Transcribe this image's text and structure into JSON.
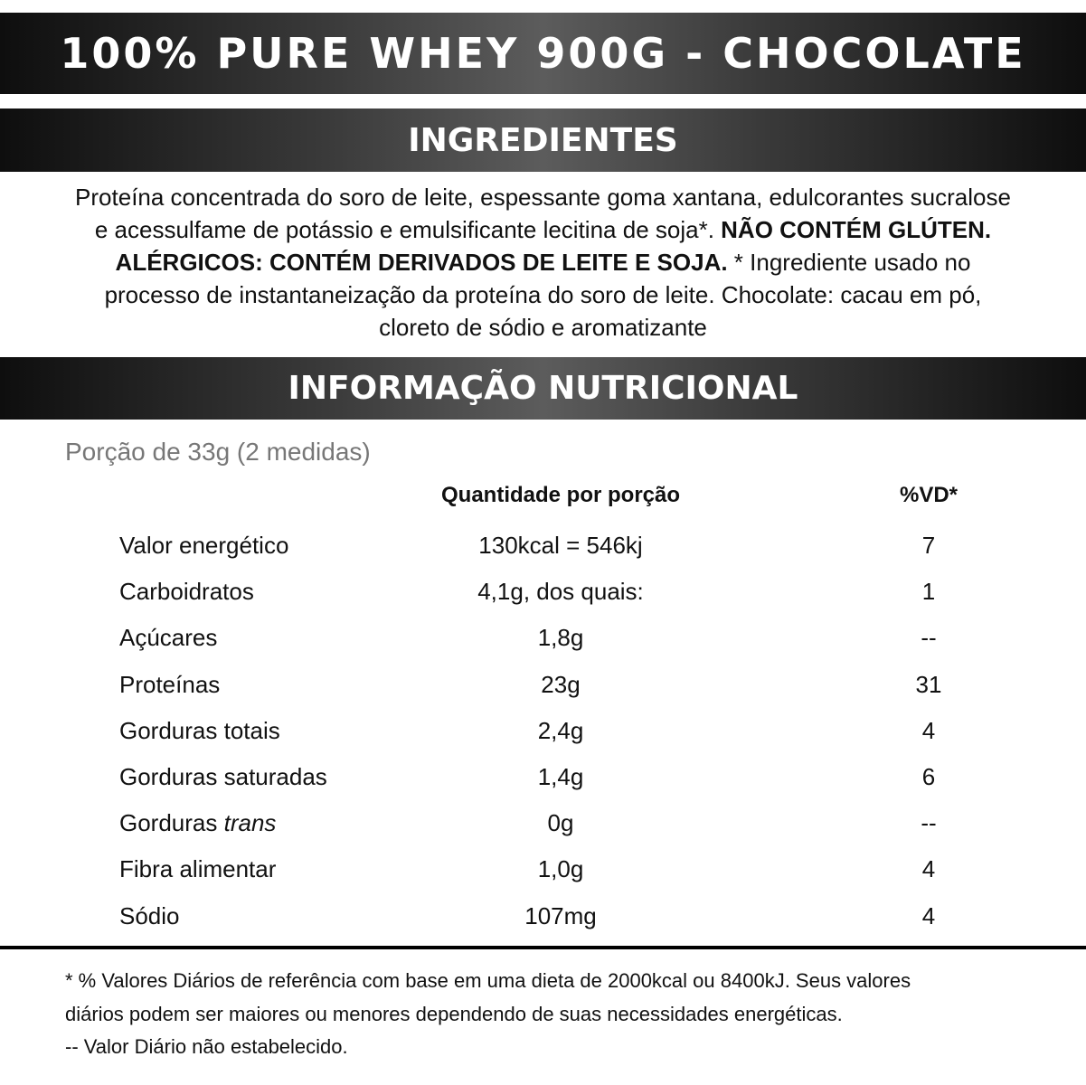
{
  "header": {
    "title": "100% PURE WHEY 900G - CHOCOLATE"
  },
  "ingredients": {
    "heading": "INGREDIENTES",
    "parts": [
      "Proteína concentrada do soro de leite, espessante goma xantana, edulcorantes sucralose e acessulfame de potássio e emulsificante lecitina de soja*. ",
      "NÃO CONTÉM GLÚTEN. ALÉRGICOS: CONTÉM DERIVADOS DE LEITE E SOJA.",
      " * Ingrediente usado no processo de instantaneização da proteína do soro de leite. Chocolate: cacau em pó, cloreto de sódio e aromatizante"
    ]
  },
  "nutrition": {
    "heading": "INFORMAÇÃO NUTRICIONAL",
    "serving": "Porção de 33g (2 medidas)"
  },
  "table": {
    "columns": [
      "Quantidade por porção",
      "%VD*"
    ],
    "rows": [
      {
        "name": "Valor energético",
        "amount": "130kcal = 546kj",
        "dv": "7"
      },
      {
        "name": "Carboidratos",
        "amount": "4,1g, dos quais:",
        "dv": "1"
      },
      {
        "name": "Açúcares",
        "amount": "1,8g",
        "dv": "--"
      },
      {
        "name": "Proteínas",
        "amount": "23g",
        "dv": "31"
      },
      {
        "name": "Gorduras totais",
        "amount": "2,4g",
        "dv": "4"
      },
      {
        "name": "Gorduras saturadas",
        "amount": "1,4g",
        "dv": "6"
      },
      {
        "name": "Gorduras",
        "name_italic": "trans",
        "amount": "0g",
        "dv": "--"
      },
      {
        "name": "Fibra alimentar",
        "amount": "1,0g",
        "dv": "4"
      },
      {
        "name": "Sódio",
        "amount": "107mg",
        "dv": "4"
      }
    ]
  },
  "footnotes": [
    "* % Valores Diários de referência com base em uma dieta de 2000kcal ou 8400kJ.  Seus valores",
    "diários podem ser maiores ou menores dependendo de suas necessidades energéticas.",
    "-- Valor Diário não estabelecido."
  ]
}
